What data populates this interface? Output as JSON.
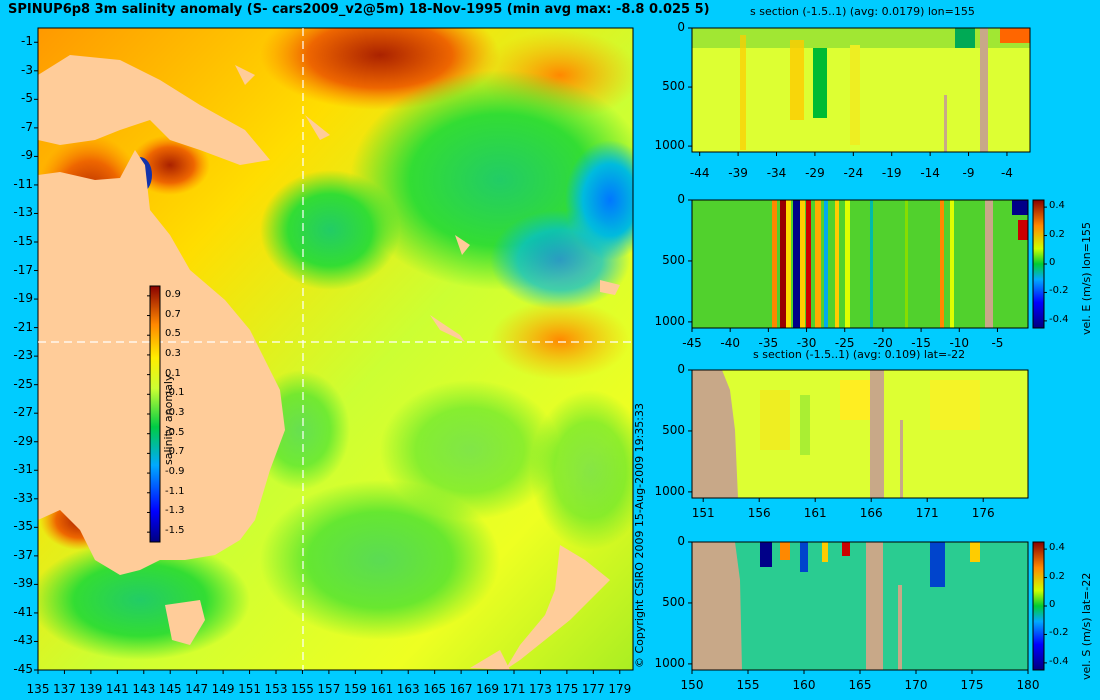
{
  "title": "SPINUP6p8 3m salinity anomaly (S- cars2009_v2@5m) 18-Nov-1995 (min avg max: -8.8 0.025 5)",
  "copyright": "© Copyright CSIRO 2009  15-Aug-2009 19:35:33",
  "colors": {
    "background": "#00ccff",
    "land": "#ffcc99",
    "section_land": "#c8a888",
    "crosshair": "#ffffff"
  },
  "chart_data": [
    {
      "type": "heatmap",
      "name": "salinity-map",
      "title": "",
      "x_ticks": [
        "135",
        "137",
        "139",
        "141",
        "143",
        "145",
        "147",
        "149",
        "151",
        "153",
        "155",
        "157",
        "159",
        "161",
        "163",
        "165",
        "167",
        "169",
        "171",
        "173",
        "175",
        "177",
        "179"
      ],
      "y_ticks": [
        "-1",
        "-3",
        "-5",
        "-7",
        "-9",
        "-11",
        "-13",
        "-15",
        "-17",
        "-19",
        "-21",
        "-23",
        "-25",
        "-27",
        "-29",
        "-31",
        "-33",
        "-35",
        "-37",
        "-39",
        "-41",
        "-43",
        "-45"
      ],
      "xlim": [
        135,
        180
      ],
      "ylim": [
        -45,
        0
      ],
      "crosshair": {
        "lon": 155,
        "lat": -22
      },
      "colorbar": {
        "label": "salinity anomaly",
        "ticks": [
          "0.9",
          "0.7",
          "0.5",
          "0.3",
          "0.1",
          "-0.1",
          "-0.3",
          "-0.5",
          "-0.7",
          "-0.9",
          "-1.1",
          "-1.3",
          "-1.5"
        ],
        "range": [
          -1.6,
          1.0
        ]
      }
    },
    {
      "type": "heatmap",
      "name": "s-section-lon155",
      "title": "s section (-1.5..1) (avg: 0.0179) lon=155",
      "x_ticks": [
        "-44",
        "-39",
        "-34",
        "-29",
        "-24",
        "-19",
        "-14",
        "-9",
        "-4"
      ],
      "xlim": [
        -45,
        -1
      ],
      "y_ticks": [
        "0",
        "500",
        "1000"
      ],
      "ylim": [
        1050,
        0
      ]
    },
    {
      "type": "heatmap",
      "name": "vel-e-section-lon155",
      "title": "",
      "x_ticks": [
        "-45",
        "-40",
        "-35",
        "-30",
        "-25",
        "-20",
        "-15",
        "-10",
        "-5"
      ],
      "xlim": [
        -45,
        -1
      ],
      "y_ticks": [
        "0",
        "500",
        "1000"
      ],
      "ylim": [
        1050,
        0
      ],
      "colorbar": {
        "label": "vel. E (m/s) lon=155",
        "ticks": [
          "0.4",
          "0.2",
          "0",
          "-0.2",
          "-0.4"
        ],
        "range": [
          -0.45,
          0.45
        ]
      }
    },
    {
      "type": "heatmap",
      "name": "s-section-lat-22",
      "title": "s section (-1.5..1) (avg: 0.109) lat=-22",
      "x_ticks": [
        "151",
        "156",
        "161",
        "166",
        "171",
        "176"
      ],
      "xlim": [
        150,
        180
      ],
      "y_ticks": [
        "0",
        "500",
        "1000"
      ],
      "ylim": [
        1050,
        0
      ]
    },
    {
      "type": "heatmap",
      "name": "vel-s-section-lat-22",
      "title": "",
      "x_ticks": [
        "150",
        "155",
        "160",
        "165",
        "170",
        "175",
        "180"
      ],
      "xlim": [
        150,
        180
      ],
      "y_ticks": [
        "0",
        "500",
        "1000"
      ],
      "ylim": [
        1050,
        0
      ],
      "colorbar": {
        "label": "vel. S (m/s) lat=-22",
        "ticks": [
          "0.4",
          "0.2",
          "0",
          "-0.2",
          "-0.4"
        ],
        "range": [
          -0.45,
          0.45
        ]
      }
    }
  ]
}
